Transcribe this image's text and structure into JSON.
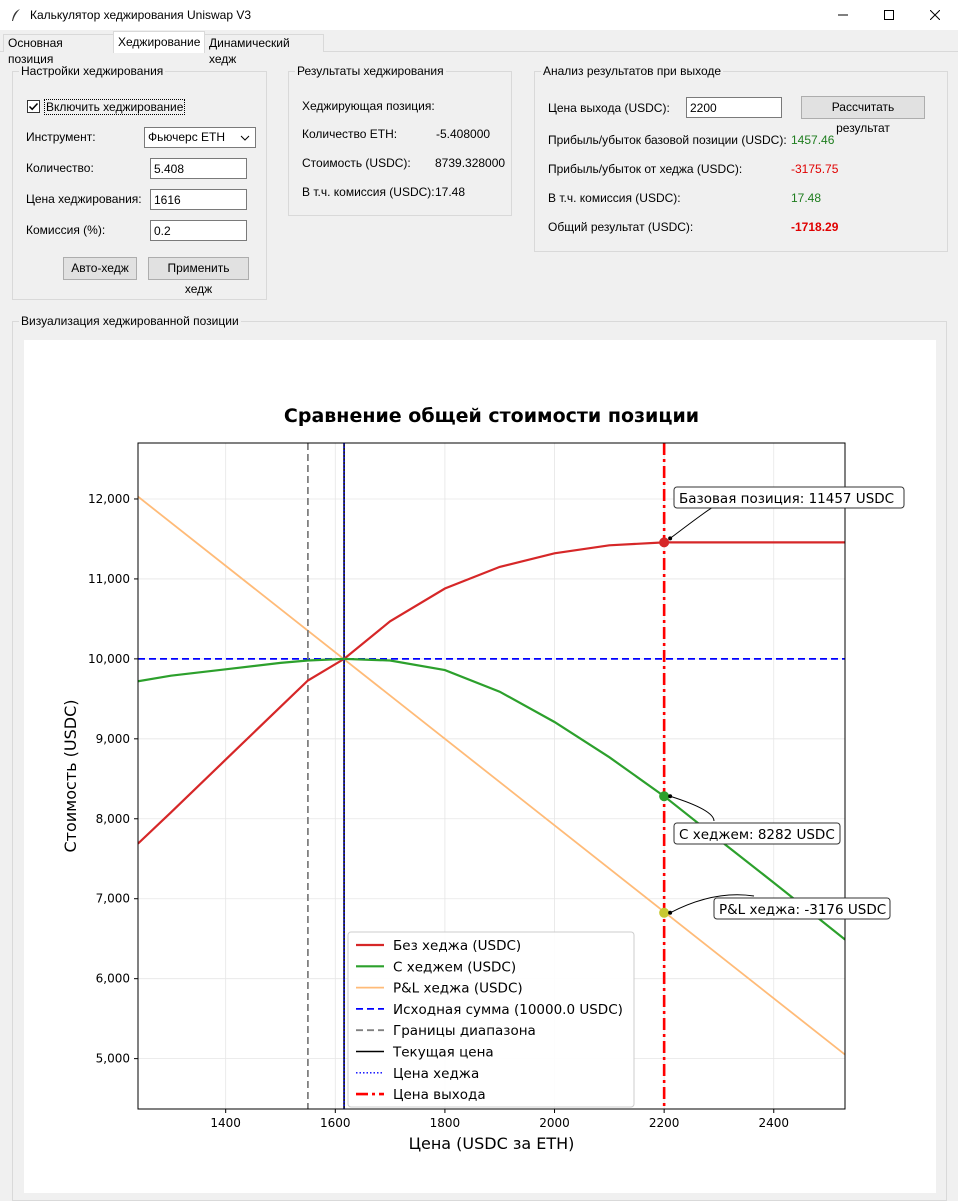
{
  "window": {
    "title": "Калькулятор хеджирования Uniswap V3",
    "minimize_symbol": "—",
    "maximize_symbol": "☐",
    "close_symbol": "✕"
  },
  "tabs": [
    {
      "label": "Основная позиция"
    },
    {
      "label": "Хеджирование"
    },
    {
      "label": "Динамический хедж"
    }
  ],
  "hedge_settings": {
    "title": "Настройки хеджирования",
    "enable_label": "Включить хеджирование",
    "enable_checked": true,
    "instrument_label": "Инструмент:",
    "instrument_value": "Фьючерс ETH",
    "quantity_label": "Количество:",
    "quantity_value": "5.408",
    "hedge_price_label": "Цена хеджирования:",
    "hedge_price_value": "1616",
    "commission_label": "Комиссия (%):",
    "commission_value": "0.2",
    "auto_hedge_button": "Авто-хедж",
    "apply_hedge_button": "Применить хедж"
  },
  "hedge_results": {
    "title": "Результаты хеджирования",
    "position_label": "Хеджирующая позиция:",
    "eth_qty_label": "Количество ETH:",
    "eth_qty_value": "-5.408000",
    "cost_label": "Стоимость (USDC):",
    "cost_value": "8739.328000",
    "commission_label": "В т.ч. комиссия (USDC):",
    "commission_value": "17.48"
  },
  "exit_analysis": {
    "title": "Анализ результатов при выходе",
    "exit_price_label": "Цена выхода (USDC):",
    "exit_price_value": "2200",
    "calculate_button": "Рассчитать результат",
    "base_pnl_label": "Прибыль/убыток базовой позиции (USDC):",
    "base_pnl_value": "1457.46",
    "hedge_pnl_label": "Прибыль/убыток от хеджа (USDC):",
    "hedge_pnl_value": "-3175.75",
    "commission_label": "В т.ч. комиссия (USDC):",
    "commission_value": "17.48",
    "total_label": "Общий результат (USDC):",
    "total_value": "-1718.29"
  },
  "visualization": {
    "title": "Визуализация хеджированной позиции"
  },
  "chart_data": {
    "type": "line",
    "title": "Сравнение общей стоимости позиции",
    "xlabel": "Цена (USDC за ETH)",
    "ylabel": "Стоимость (USDC)",
    "xlim": [
      1240,
      2530
    ],
    "ylim": [
      4370,
      12700
    ],
    "xticks": [
      1400,
      1600,
      1800,
      2000,
      2200,
      2400
    ],
    "yticks": [
      5000,
      6000,
      7000,
      8000,
      9000,
      10000,
      11000,
      12000
    ],
    "ytick_labels": [
      "5,000",
      "6,000",
      "7,000",
      "8,000",
      "9,000",
      "10,000",
      "11,000",
      "12,000"
    ],
    "grid": true,
    "legend_position": "bottom-center",
    "colors": {
      "no_hedge": "#d62728",
      "with_hedge": "#2ca02c",
      "hedge_pnl": "#ffbb78",
      "initial": "#0000ff",
      "range": "#808080",
      "current": "#000000",
      "hedge_price": "#0000ff",
      "exit": "#ff0000",
      "hedge_pnl_marker": "#c8c832"
    },
    "series": [
      {
        "name": "Без хеджа (USDC)",
        "x": [
          1240,
          1300,
          1400,
          1500,
          1550,
          1616,
          1700,
          1800,
          1900,
          2000,
          2100,
          2200,
          2300,
          2400,
          2530
        ],
        "y": [
          7690,
          8080,
          8740,
          9400,
          9730,
          10000,
          10470,
          10880,
          11150,
          11320,
          11420,
          11457,
          11457,
          11457,
          11457
        ]
      },
      {
        "name": "С хеджем (USDC)",
        "x": [
          1240,
          1300,
          1400,
          1500,
          1550,
          1616,
          1700,
          1800,
          1900,
          2000,
          2100,
          2200,
          2300,
          2400,
          2530
        ],
        "y": [
          9720,
          9790,
          9870,
          9950,
          9980,
          10000,
          9980,
          9860,
          9590,
          9210,
          8770,
          8282,
          7740,
          7200,
          6490
        ]
      },
      {
        "name": "P&L хеджа (USDC)",
        "x": [
          1240,
          2530
        ],
        "y": [
          12030,
          5050
        ]
      },
      {
        "name": "Исходная сумма (10000.0 USDC)",
        "y_const": 10000
      },
      {
        "name": "Границы диапазона",
        "x_const": [
          1550
        ]
      },
      {
        "name": "Текущая цена",
        "x_const": [
          1616
        ]
      },
      {
        "name": "Цена хеджа",
        "x_const": [
          1616
        ]
      },
      {
        "name": "Цена выхода",
        "x_const": [
          2200
        ]
      }
    ],
    "points": [
      {
        "x": 2200,
        "y": 11457,
        "label": "Базовая позиция: 11457 USDC"
      },
      {
        "x": 2200,
        "y": 8282,
        "label": "С хеджем: 8282 USDC"
      },
      {
        "x": 2200,
        "y": 6824,
        "label": "P&L хеджа: -3176 USDC"
      }
    ]
  }
}
